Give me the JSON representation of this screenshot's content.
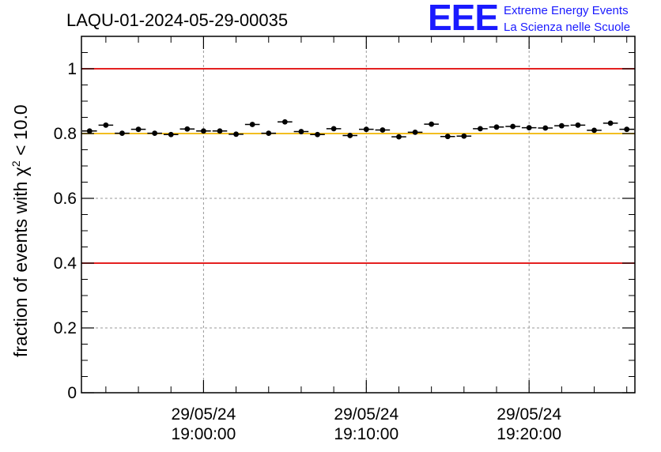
{
  "chart_data": {
    "type": "scatter",
    "title": "LAQU-01-2024-05-29-00035",
    "ylabel": "fraction of events with χ² < 10.0",
    "ylabel_parts": {
      "prefix": "fraction of events with ",
      "chi": "χ",
      "sup": "2",
      "suffix": " < 10.0"
    },
    "xlabel": "",
    "ylim": [
      0,
      1.1
    ],
    "yticks": [
      0,
      0.2,
      0.4,
      0.6,
      0.8,
      1
    ],
    "ytick_labels": [
      "0",
      "0.2",
      "0.4",
      "0.6",
      "0.8",
      "1"
    ],
    "xlim_minutes": [
      -7.5,
      26.5
    ],
    "xticks_minutes": [
      0,
      10,
      20
    ],
    "xtick_labels": [
      {
        "date": "29/05/24",
        "time": "19:00:00"
      },
      {
        "date": "29/05/24",
        "time": "19:10:00"
      },
      {
        "date": "29/05/24",
        "time": "19:20:00"
      }
    ],
    "grid": true,
    "reference_lines": [
      {
        "y": 1.0,
        "color": "#e00000"
      },
      {
        "y": 0.8,
        "color": "#f0b400"
      },
      {
        "y": 0.4,
        "color": "#e00000"
      }
    ],
    "series": [
      {
        "color": "#000000",
        "x_minutes": [
          -7.0,
          -6.0,
          -5.0,
          -4.0,
          -3.0,
          -2.0,
          -1.0,
          0.0,
          1.0,
          2.0,
          3.0,
          4.0,
          5.0,
          6.0,
          7.0,
          8.0,
          9.0,
          10.0,
          11.0,
          12.0,
          13.0,
          14.0,
          15.0,
          16.0,
          17.0,
          18.0,
          19.0,
          20.0,
          21.0,
          22.0,
          23.0,
          24.0,
          25.0,
          26.0
        ],
        "values": [
          0.808,
          0.826,
          0.801,
          0.813,
          0.801,
          0.797,
          0.814,
          0.808,
          0.808,
          0.798,
          0.828,
          0.801,
          0.836,
          0.806,
          0.797,
          0.815,
          0.794,
          0.813,
          0.811,
          0.79,
          0.804,
          0.829,
          0.791,
          0.792,
          0.815,
          0.82,
          0.822,
          0.818,
          0.817,
          0.824,
          0.826,
          0.81,
          0.832,
          0.813
        ],
        "errors": [
          0.005,
          0.005,
          0.005,
          0.005,
          0.005,
          0.005,
          0.005,
          0.005,
          0.005,
          0.005,
          0.005,
          0.005,
          0.005,
          0.005,
          0.005,
          0.005,
          0.005,
          0.005,
          0.005,
          0.005,
          0.005,
          0.005,
          0.005,
          0.005,
          0.005,
          0.005,
          0.005,
          0.005,
          0.005,
          0.005,
          0.005,
          0.005,
          0.005,
          0.005
        ]
      }
    ]
  },
  "logo": {
    "mark": "EEE",
    "line1": "Extreme Energy Events",
    "line2": "La Scienza nelle Scuole"
  }
}
